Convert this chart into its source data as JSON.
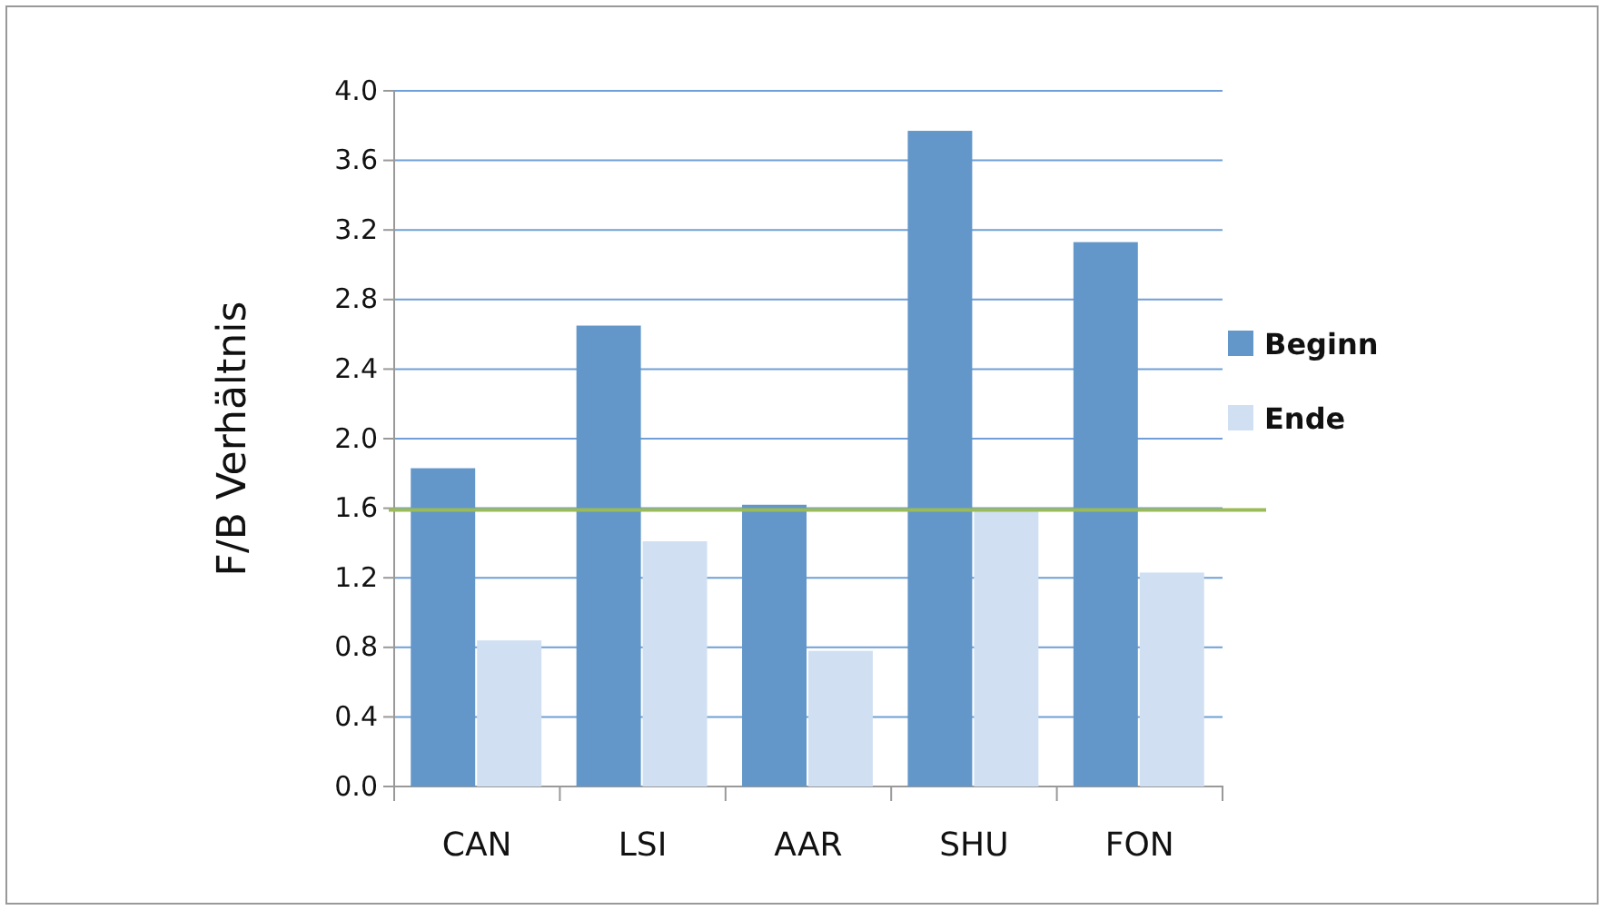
{
  "chart_data": {
    "type": "bar",
    "ylabel": "F/B Verhältnis",
    "categories": [
      "CAN",
      "LSI",
      "AAR",
      "SHU",
      "FON"
    ],
    "series": [
      {
        "name": "Beginn",
        "color": "#6397c9",
        "values": [
          1.83,
          2.65,
          1.62,
          3.77,
          3.13
        ]
      },
      {
        "name": "Ende",
        "color": "#d0e0f2",
        "values": [
          0.84,
          1.41,
          0.78,
          1.59,
          1.23
        ]
      }
    ],
    "ylim": [
      0,
      4.0
    ],
    "yticks": [
      {
        "value": 0,
        "label": "0.0"
      },
      {
        "value": 0.4,
        "label": "0.4"
      },
      {
        "value": 0.8,
        "label": "0.8"
      },
      {
        "value": 1.2,
        "label": "1.2"
      },
      {
        "value": 1.6,
        "label": "1.6"
      },
      {
        "value": 2.0,
        "label": "2.0"
      },
      {
        "value": 2.4,
        "label": "2.4"
      },
      {
        "value": 2.8,
        "label": "2.8"
      },
      {
        "value": 3.2,
        "label": "3.2"
      },
      {
        "value": 3.6,
        "label": "3.6"
      },
      {
        "value": 4.0,
        "label": "4.0"
      }
    ],
    "grid": "y",
    "legend": "right",
    "ref_lines": [
      {
        "axis": "y",
        "value": 1.59,
        "color": "#9bbb59"
      }
    ]
  }
}
